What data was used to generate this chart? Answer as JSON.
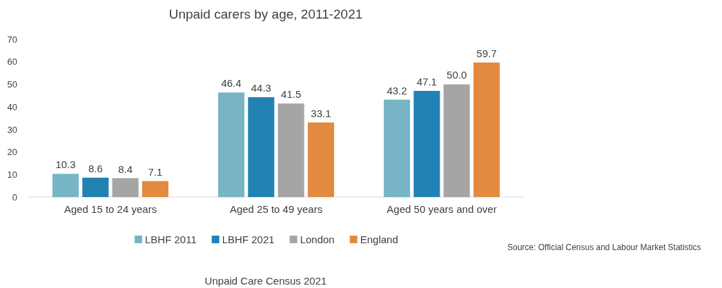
{
  "chart_data": {
    "type": "bar",
    "title": "Unpaid carers by age, 2011-2021",
    "categories": [
      "Aged 15 to 24 years",
      "Aged 25 to 49 years",
      "Aged 50 years and over"
    ],
    "series": [
      {
        "name": "LBHF 2011",
        "color": "#77b5c6",
        "values": [
          10.3,
          46.4,
          43.2
        ]
      },
      {
        "name": "LBHF 2021",
        "color": "#2282b4",
        "values": [
          8.6,
          44.3,
          47.1
        ]
      },
      {
        "name": "London",
        "color": "#a5a5a5",
        "values": [
          8.4,
          41.5,
          50.0
        ]
      },
      {
        "name": "England",
        "color": "#e38a41",
        "values": [
          7.1,
          33.1,
          59.7
        ]
      }
    ],
    "value_labels": [
      [
        "10.3",
        "46.4",
        "43.2"
      ],
      [
        "8.6",
        "44.3",
        "47.1"
      ],
      [
        "8.4",
        "41.5",
        "50.0"
      ],
      [
        "7.1",
        "33.1",
        "59.7"
      ]
    ],
    "ylim": [
      0,
      70
    ],
    "yticks": [
      0,
      10,
      20,
      30,
      40,
      50,
      60,
      70
    ],
    "grid": false,
    "legend": "bottom",
    "annotations": [
      "Source: Official Census and Labour Market Statistics",
      "Unpaid Care Census 2021"
    ]
  }
}
